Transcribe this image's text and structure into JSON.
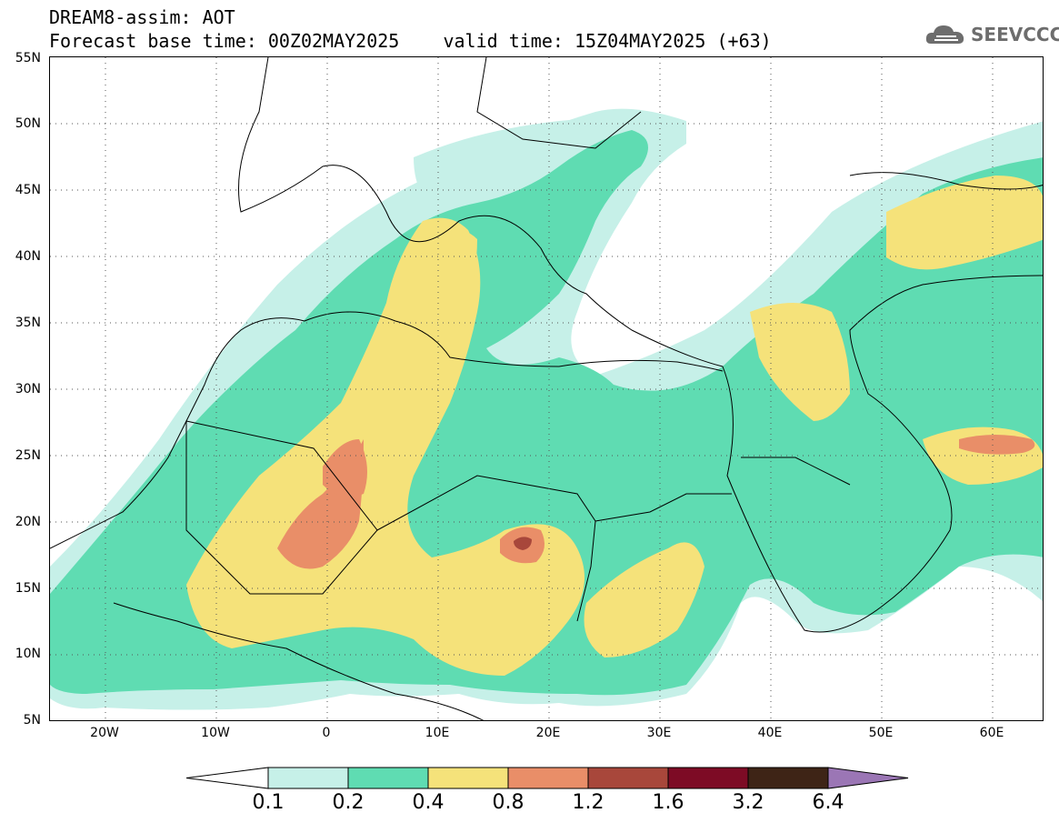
{
  "title": {
    "line1": "DREAM8-assim: AOT",
    "line2": "Forecast base time: 00Z02MAY2025    valid time: 15Z04MAY2025 (+63)"
  },
  "logo": {
    "text": "SEEVCCC",
    "icon": "cloud-logo-icon"
  },
  "map": {
    "lat_labels": [
      "55N",
      "50N",
      "45N",
      "40N",
      "35N",
      "30N",
      "25N",
      "20N",
      "15N",
      "10N",
      "5N"
    ],
    "lon_labels": [
      "20W",
      "10W",
      "0",
      "10E",
      "20E",
      "30E",
      "40E",
      "50E",
      "60E"
    ],
    "gridlines": "dotted"
  },
  "legend": {
    "labels": [
      "0.1",
      "0.2",
      "0.4",
      "0.8",
      "1.2",
      "1.6",
      "3.2",
      "6.4"
    ],
    "colors": [
      "#ffffff",
      "#c6f0e8",
      "#5fdcb2",
      "#f5e27a",
      "#e98e68",
      "#a8473b",
      "#7d0b25",
      "#3e2416",
      "#9b76b5"
    ]
  }
}
